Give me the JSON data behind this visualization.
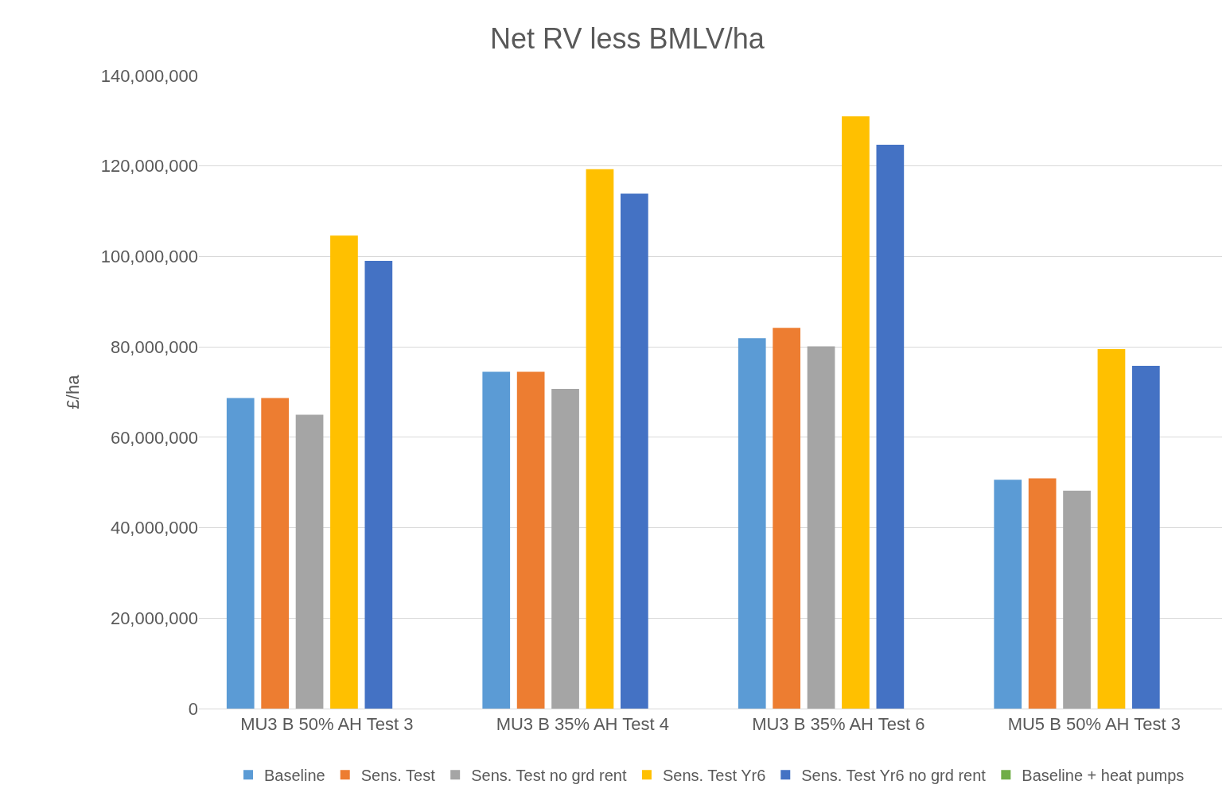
{
  "chart_data": {
    "type": "bar",
    "title": "Net RV less BMLV/ha",
    "ylabel": "£/ha",
    "categories": [
      "MU3 B 50% AH Test 3",
      "MU3 B 35% AH Test 4",
      "MU3 B 35% AH Test 6",
      "MU5 B 50% AH Test 3"
    ],
    "series": [
      {
        "name": "Baseline",
        "color": "#5b9bd5",
        "values": [
          68700000,
          74500000,
          81900000,
          50600000
        ]
      },
      {
        "name": "Sens. Test",
        "color": "#ed7d31",
        "values": [
          68700000,
          74500000,
          84200000,
          50900000
        ]
      },
      {
        "name": "Sens. Test no grd rent",
        "color": "#a5a5a5",
        "values": [
          65000000,
          70700000,
          80100000,
          48200000
        ]
      },
      {
        "name": "Sens. Test Yr6",
        "color": "#ffc000",
        "values": [
          104600000,
          119300000,
          131000000,
          79500000
        ]
      },
      {
        "name": "Sens. Test Yr6 no grd rent",
        "color": "#4472c4",
        "values": [
          99000000,
          113900000,
          124700000,
          75800000
        ]
      },
      {
        "name": "Baseline + heat pumps",
        "color": "#70ad47",
        "values": [
          null,
          null,
          null,
          null
        ]
      }
    ],
    "ylim": [
      0,
      140000000
    ],
    "yticks": [
      {
        "value": 0,
        "label": "0"
      },
      {
        "value": 20000000,
        "label": "20,000,000"
      },
      {
        "value": 40000000,
        "label": "40,000,000"
      },
      {
        "value": 60000000,
        "label": "60,000,000"
      },
      {
        "value": 80000000,
        "label": "80,000,000"
      },
      {
        "value": 100000000,
        "label": "100,000,000"
      },
      {
        "value": 120000000,
        "label": "120,000,000"
      },
      {
        "value": 140000000,
        "label": "140,000,000"
      }
    ],
    "grid": "y",
    "legend": "bottom"
  }
}
